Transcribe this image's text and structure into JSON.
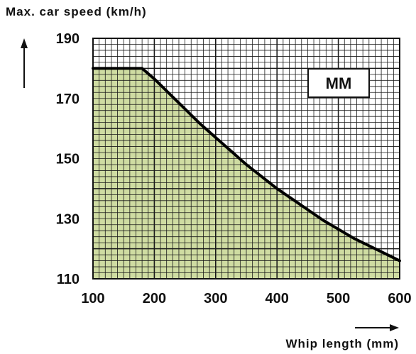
{
  "chart_data": {
    "type": "area",
    "ylabel": "Max. car speed (km/h)",
    "xlabel": "Whip length (mm)",
    "annotation": "MM",
    "xlim": [
      100,
      600
    ],
    "ylim": [
      110,
      190
    ],
    "x_ticks": [
      "100",
      "200",
      "300",
      "400",
      "500",
      "600"
    ],
    "y_ticks": [
      "110",
      "130",
      "150",
      "170",
      "190"
    ],
    "grid": true,
    "series": [
      {
        "x": [
          100,
          180,
          200,
          225,
          250,
          275,
          300,
          325,
          350,
          375,
          400,
          425,
          450,
          475,
          500,
          525,
          550,
          575,
          600
        ],
        "values": [
          180,
          180,
          176.5,
          171.5,
          166.5,
          161.5,
          157,
          152.5,
          148,
          144,
          140,
          136.5,
          133,
          129.5,
          126.5,
          123.5,
          121,
          118.5,
          116
        ]
      }
    ],
    "colors": {
      "fill": "#cfdca2",
      "grid_line": "#1a1a1a",
      "curve": "#000000",
      "text": "#111111"
    }
  }
}
